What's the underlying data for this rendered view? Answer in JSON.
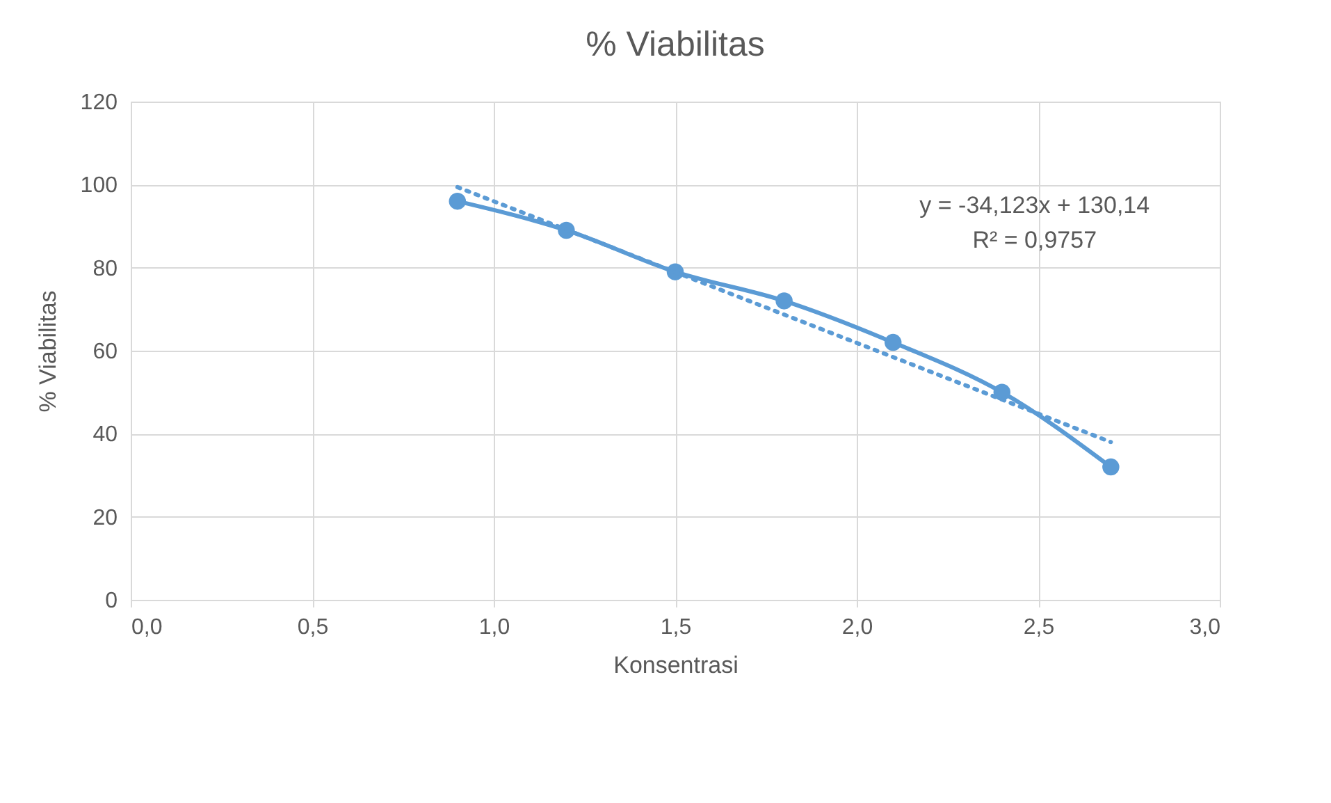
{
  "chart_data": {
    "type": "line",
    "title": "% Viabilitas",
    "xlabel": "Konsentrasi",
    "ylabel": "% Viabilitas",
    "x": [
      0.9,
      1.2,
      1.5,
      1.8,
      2.1,
      2.4,
      2.7
    ],
    "series": [
      {
        "color": "#5b9bd5",
        "values": [
          96,
          89,
          79,
          72,
          62,
          50,
          32
        ],
        "marker": "circle",
        "line_style": "solid"
      },
      {
        "type": "line",
        "color": "#5b9bd5",
        "x": [
          0.9,
          2.7
        ],
        "values": [
          99.4,
          38.0
        ],
        "marker": "none",
        "line_style": "dotted"
      }
    ],
    "xlim": [
      0,
      3
    ],
    "xticks": [
      {
        "value": 0,
        "label": "0,0"
      },
      {
        "value": 0.5,
        "label": "0,5"
      },
      {
        "value": 1,
        "label": "1,0"
      },
      {
        "value": 1.5,
        "label": "1,5"
      },
      {
        "value": 2,
        "label": "2,0"
      },
      {
        "value": 2.5,
        "label": "2,5"
      },
      {
        "value": 3,
        "label": "3,0"
      }
    ],
    "ylim": [
      0,
      120
    ],
    "yticks": [
      0,
      20,
      40,
      60,
      80,
      100,
      120
    ],
    "grid": true,
    "annotations": [
      "y = -34,123x + 130,14",
      "R² = 0,9757"
    ]
  }
}
